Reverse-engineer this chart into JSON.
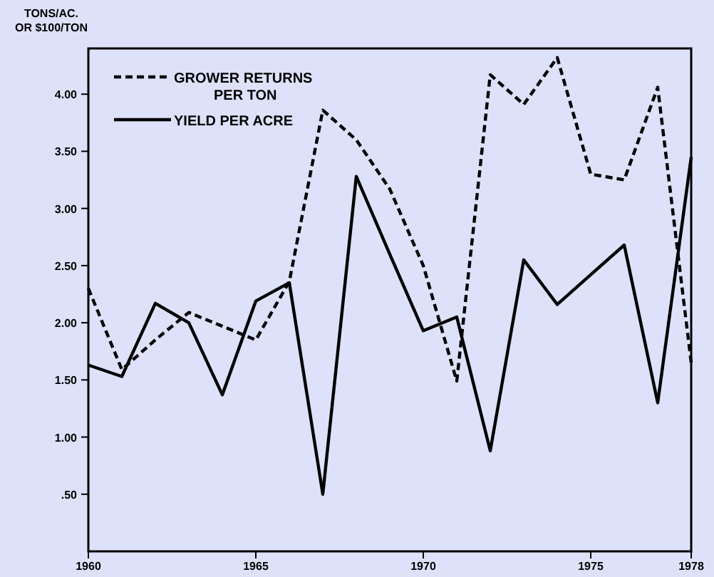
{
  "chart_data": {
    "type": "line",
    "ylabel": "TONS/AC.\nOR $100/TON",
    "x": [
      1960,
      1961,
      1962,
      1963,
      1964,
      1965,
      1966,
      1967,
      1968,
      1969,
      1970,
      1971,
      1972,
      1973,
      1974,
      1975,
      1976,
      1977,
      1978
    ],
    "series": [
      {
        "name": "GROWER RETURNS\nPER TON",
        "color": "#000000",
        "line_style": "dashed",
        "values": [
          2.3,
          1.59,
          1.85,
          2.09,
          1.97,
          1.85,
          2.36,
          3.86,
          3.6,
          3.17,
          2.5,
          1.49,
          4.17,
          3.91,
          4.32,
          3.3,
          3.25,
          4.06,
          1.65
        ]
      },
      {
        "name": "YIELD PER ACRE",
        "color": "#000000",
        "line_style": "solid",
        "values": [
          1.63,
          1.53,
          2.17,
          2.0,
          1.37,
          2.19,
          2.35,
          0.5,
          3.28,
          2.6,
          1.93,
          2.05,
          0.88,
          2.55,
          2.16,
          2.42,
          2.68,
          1.3,
          3.45
        ]
      }
    ],
    "xlim": [
      1960,
      1978
    ],
    "xticks": [
      1960,
      1965,
      1970,
      1975,
      1978
    ],
    "ylim": [
      0,
      4.4
    ],
    "yticks": [
      {
        "value": 0.5,
        "label": ".50"
      },
      {
        "value": 1,
        "label": "1.00"
      },
      {
        "value": 1.5,
        "label": "1.50"
      },
      {
        "value": 2,
        "label": "2.00"
      },
      {
        "value": 2.5,
        "label": "2.50"
      },
      {
        "value": 3,
        "label": "3.00"
      },
      {
        "value": 3.5,
        "label": "3.50"
      },
      {
        "value": 4,
        "label": "4.00"
      }
    ],
    "grid": false,
    "legend": "top left",
    "marker": "none"
  }
}
